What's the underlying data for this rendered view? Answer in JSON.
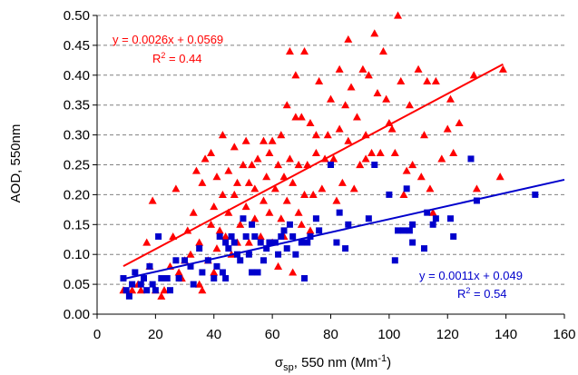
{
  "chart_data": {
    "type": "scatter",
    "title": "",
    "xlabel": {
      "symbol": "σ",
      "subscript": "sp",
      "rest": ", 550 nm (Mm",
      "superscript": "-1",
      "close": ")"
    },
    "ylabel": "AOD, 550nm",
    "xlim": [
      0,
      160
    ],
    "ylim": [
      0,
      0.5
    ],
    "xticks": [
      0,
      20,
      40,
      60,
      80,
      100,
      120,
      140,
      160
    ],
    "yticks": [
      "0.00",
      "0.05",
      "0.10",
      "0.15",
      "0.20",
      "0.25",
      "0.30",
      "0.35",
      "0.40",
      "0.45",
      "0.50"
    ],
    "grid": "horizontal dashed",
    "series": [
      {
        "marker": "triangle",
        "color": "#ff0000",
        "points": [
          [
            9,
            0.04
          ],
          [
            12,
            0.04
          ],
          [
            14,
            0.05
          ],
          [
            15,
            0.04
          ],
          [
            17,
            0.12
          ],
          [
            18,
            0.08
          ],
          [
            19,
            0.19
          ],
          [
            20,
            0.04
          ],
          [
            22,
            0.03
          ],
          [
            23,
            0.04
          ],
          [
            25,
            0.08
          ],
          [
            26,
            0.13
          ],
          [
            27,
            0.21
          ],
          [
            28,
            0.07
          ],
          [
            29,
            0.06
          ],
          [
            30,
            0.09
          ],
          [
            31,
            0.14
          ],
          [
            32,
            0.1
          ],
          [
            33,
            0.17
          ],
          [
            34,
            0.24
          ],
          [
            35,
            0.05
          ],
          [
            35,
            0.12
          ],
          [
            36,
            0.04
          ],
          [
            36,
            0.22
          ],
          [
            37,
            0.26
          ],
          [
            38,
            0.09
          ],
          [
            39,
            0.15
          ],
          [
            39,
            0.27
          ],
          [
            40,
            0.07
          ],
          [
            40,
            0.18
          ],
          [
            41,
            0.11
          ],
          [
            41,
            0.23
          ],
          [
            42,
            0.14
          ],
          [
            43,
            0.2
          ],
          [
            43,
            0.3
          ],
          [
            44,
            0.13
          ],
          [
            45,
            0.17
          ],
          [
            45,
            0.24
          ],
          [
            46,
            0.1
          ],
          [
            47,
            0.2
          ],
          [
            47,
            0.28
          ],
          [
            48,
            0.12
          ],
          [
            48,
            0.22
          ],
          [
            49,
            0.15
          ],
          [
            50,
            0.25
          ],
          [
            51,
            0.18
          ],
          [
            51,
            0.29
          ],
          [
            52,
            0.12
          ],
          [
            52,
            0.22
          ],
          [
            53,
            0.25
          ],
          [
            54,
            0.16
          ],
          [
            54,
            0.21
          ],
          [
            55,
            0.26
          ],
          [
            56,
            0.13
          ],
          [
            57,
            0.19
          ],
          [
            57,
            0.29
          ],
          [
            58,
            0.23
          ],
          [
            59,
            0.17
          ],
          [
            59,
            0.27
          ],
          [
            60,
            0.12
          ],
          [
            60,
            0.29
          ],
          [
            61,
            0.21
          ],
          [
            62,
            0.08
          ],
          [
            62,
            0.25
          ],
          [
            63,
            0.16
          ],
          [
            63,
            0.3
          ],
          [
            64,
            0.13
          ],
          [
            64,
            0.23
          ],
          [
            65,
            0.19
          ],
          [
            65,
            0.35
          ],
          [
            66,
            0.26
          ],
          [
            66,
            0.44
          ],
          [
            67,
            0.07
          ],
          [
            67,
            0.22
          ],
          [
            68,
            0.33
          ],
          [
            68,
            0.4
          ],
          [
            69,
            0.17
          ],
          [
            69,
            0.25
          ],
          [
            70,
            0.15
          ],
          [
            70,
            0.33
          ],
          [
            71,
            0.2
          ],
          [
            71,
            0.44
          ],
          [
            72,
            0.25
          ],
          [
            73,
            0.32
          ],
          [
            73,
            0.14
          ],
          [
            74,
            0.2
          ],
          [
            75,
            0.3
          ],
          [
            75,
            0.27
          ],
          [
            76,
            0.39
          ],
          [
            77,
            0.21
          ],
          [
            78,
            0.26
          ],
          [
            79,
            0.3
          ],
          [
            80,
            0.36
          ],
          [
            81,
            0.26
          ],
          [
            82,
            0.19
          ],
          [
            83,
            0.31
          ],
          [
            83,
            0.41
          ],
          [
            84,
            0.22
          ],
          [
            85,
            0.35
          ],
          [
            86,
            0.29
          ],
          [
            86,
            0.46
          ],
          [
            87,
            0.38
          ],
          [
            88,
            0.21
          ],
          [
            89,
            0.33
          ],
          [
            90,
            0.25
          ],
          [
            91,
            0.41
          ],
          [
            92,
            0.3
          ],
          [
            92,
            0.26
          ],
          [
            93,
            0.4
          ],
          [
            94,
            0.27
          ],
          [
            95,
            0.47
          ],
          [
            96,
            0.37
          ],
          [
            97,
            0.27
          ],
          [
            98,
            0.44
          ],
          [
            99,
            0.36
          ],
          [
            100,
            0.32
          ],
          [
            101,
            0.31
          ],
          [
            102,
            0.27
          ],
          [
            103,
            0.5
          ],
          [
            104,
            0.39
          ],
          [
            105,
            0.2
          ],
          [
            106,
            0.24
          ],
          [
            107,
            0.35
          ],
          [
            108,
            0.25
          ],
          [
            110,
            0.41
          ],
          [
            111,
            0.23
          ],
          [
            112,
            0.3
          ],
          [
            113,
            0.39
          ],
          [
            114,
            0.21
          ],
          [
            115,
            0.17
          ],
          [
            116,
            0.39
          ],
          [
            118,
            0.26
          ],
          [
            120,
            0.31
          ],
          [
            121,
            0.36
          ],
          [
            122,
            0.27
          ],
          [
            124,
            0.32
          ],
          [
            129,
            0.4
          ],
          [
            130,
            0.21
          ],
          [
            138,
            0.23
          ],
          [
            139,
            0.41
          ]
        ]
      },
      {
        "marker": "square",
        "color": "#0000cc",
        "points": [
          [
            9,
            0.06
          ],
          [
            10,
            0.04
          ],
          [
            11,
            0.03
          ],
          [
            12,
            0.05
          ],
          [
            13,
            0.07
          ],
          [
            15,
            0.05
          ],
          [
            16,
            0.06
          ],
          [
            17,
            0.04
          ],
          [
            18,
            0.08
          ],
          [
            19,
            0.05
          ],
          [
            20,
            0.04
          ],
          [
            21,
            0.13
          ],
          [
            22,
            0.06
          ],
          [
            24,
            0.06
          ],
          [
            25,
            0.04
          ],
          [
            27,
            0.09
          ],
          [
            28,
            0.06
          ],
          [
            30,
            0.09
          ],
          [
            32,
            0.08
          ],
          [
            33,
            0.05
          ],
          [
            35,
            0.11
          ],
          [
            36,
            0.07
          ],
          [
            38,
            0.09
          ],
          [
            40,
            0.06
          ],
          [
            41,
            0.08
          ],
          [
            42,
            0.13
          ],
          [
            43,
            0.07
          ],
          [
            44,
            0.06
          ],
          [
            44,
            0.12
          ],
          [
            45,
            0.11
          ],
          [
            46,
            0.13
          ],
          [
            47,
            0.12
          ],
          [
            48,
            0.1
          ],
          [
            49,
            0.09
          ],
          [
            50,
            0.16
          ],
          [
            51,
            0.13
          ],
          [
            52,
            0.1
          ],
          [
            53,
            0.07
          ],
          [
            53,
            0.15
          ],
          [
            54,
            0.13
          ],
          [
            55,
            0.07
          ],
          [
            56,
            0.12
          ],
          [
            57,
            0.09
          ],
          [
            58,
            0.11
          ],
          [
            59,
            0.12
          ],
          [
            61,
            0.12
          ],
          [
            62,
            0.1
          ],
          [
            63,
            0.13
          ],
          [
            64,
            0.14
          ],
          [
            65,
            0.11
          ],
          [
            66,
            0.15
          ],
          [
            67,
            0.13
          ],
          [
            68,
            0.1
          ],
          [
            70,
            0.12
          ],
          [
            71,
            0.06
          ],
          [
            72,
            0.12
          ],
          [
            73,
            0.13
          ],
          [
            75,
            0.16
          ],
          [
            76,
            0.14
          ],
          [
            80,
            0.25
          ],
          [
            82,
            0.12
          ],
          [
            83,
            0.17
          ],
          [
            85,
            0.11
          ],
          [
            86,
            0.15
          ],
          [
            93,
            0.16
          ],
          [
            95,
            0.25
          ],
          [
            100,
            0.2
          ],
          [
            102,
            0.09
          ],
          [
            103,
            0.14
          ],
          [
            105,
            0.14
          ],
          [
            106,
            0.21
          ],
          [
            107,
            0.14
          ],
          [
            108,
            0.15
          ],
          [
            108,
            0.12
          ],
          [
            112,
            0.11
          ],
          [
            113,
            0.17
          ],
          [
            115,
            0.15
          ],
          [
            116,
            0.16
          ],
          [
            121,
            0.16
          ],
          [
            122,
            0.13
          ],
          [
            128,
            0.26
          ],
          [
            130,
            0.19
          ],
          [
            150,
            0.2
          ]
        ]
      }
    ],
    "trendlines": [
      {
        "color": "#ff0000",
        "slope": 0.0026,
        "intercept": 0.0569,
        "x_range": [
          9,
          139
        ],
        "equation": "y = 0.0026x + 0.0569",
        "r2_label": "R",
        "r2_sup": "2",
        "r2_value": " = 0.44"
      },
      {
        "color": "#0000cc",
        "slope": 0.0011,
        "intercept": 0.049,
        "x_range": [
          9,
          160
        ],
        "equation": "y = 0.0011x + 0.049",
        "r2_label": "R",
        "r2_sup": "2",
        "r2_value": " = 0.54"
      }
    ]
  }
}
